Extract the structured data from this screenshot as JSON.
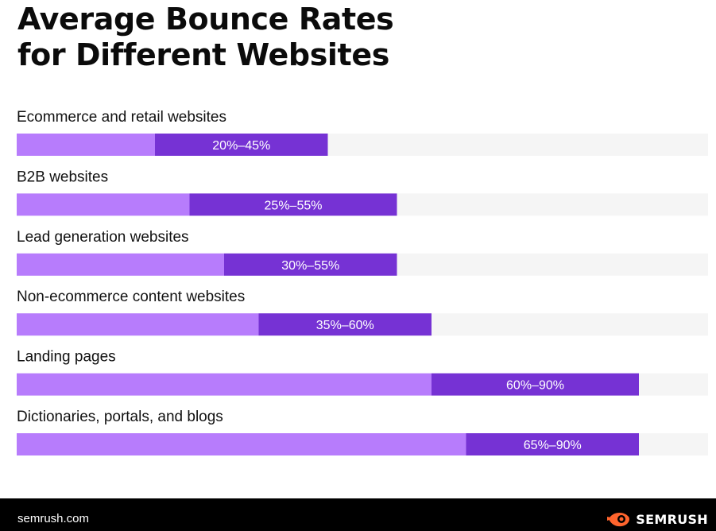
{
  "title_lines": [
    "Average Bounce Rates",
    "for Different Websites"
  ],
  "chart_data": {
    "type": "bar",
    "orientation": "horizontal",
    "title": "Average Bounce Rates for Different Websites",
    "xlim": [
      0,
      100
    ],
    "unit": "%",
    "categories": [
      "Ecommerce and retail websites",
      "B2B websites",
      "Lead generation websites",
      "Non-ecommerce content websites",
      "Landing pages",
      "Dictionaries, portals, and blogs"
    ],
    "ranges": [
      [
        20,
        45
      ],
      [
        25,
        55
      ],
      [
        30,
        55
      ],
      [
        35,
        60
      ],
      [
        60,
        90
      ],
      [
        65,
        90
      ]
    ],
    "labels": [
      "20%–45%",
      "25%–55%",
      "30%–55%",
      "35%–60%",
      "60%–90%",
      "65%–90%"
    ],
    "colors": {
      "lower": "#b77cfc",
      "range": "#7632d4",
      "track": "#f5f5f5",
      "range_label": "#ffffff"
    }
  },
  "footer": {
    "site": "semrush.com",
    "brand": "SEMRUSH",
    "brand_color": "#ff642d",
    "logo_icon": "semrush-fireball-icon"
  }
}
